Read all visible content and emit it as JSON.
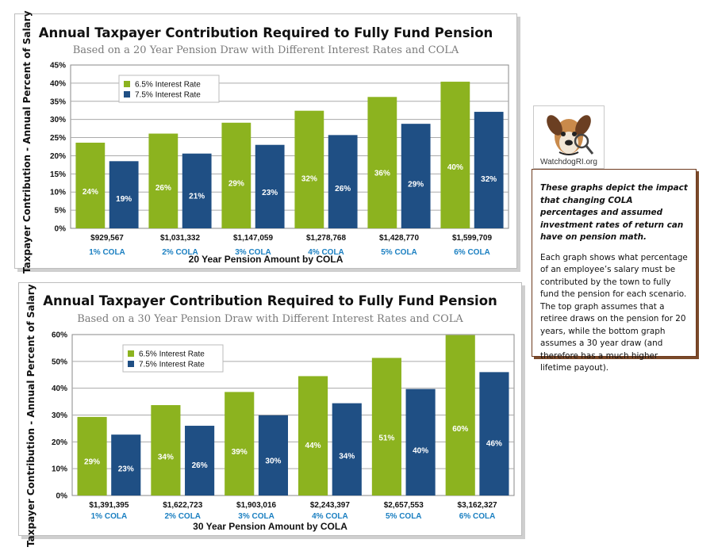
{
  "charts": [
    {
      "title": "Annual Taxpayer Contribution Required to Fully Fund Pension",
      "subtitle": "Based on a 20 Year Pension Draw with Different Interest Rates and COLA",
      "ylabel": "Taxpayer Contribution - Annual Percent of Salary",
      "xlabel": "20 Year Pension Amount by COLA"
    },
    {
      "title": "Annual Taxpayer Contribution Required to Fully Fund Pension",
      "subtitle": "Based on a 30 Year Pension Draw with Different Interest Rates and COLA",
      "ylabel": "Taxpayer Contribution - Annual Percent of Salary",
      "xlabel": "30 Year Pension Amount by COLA"
    }
  ],
  "chart_data": [
    {
      "type": "bar",
      "title": "Annual Taxpayer Contribution Required to Fully Fund Pension",
      "subtitle": "Based on a 20 Year Pension Draw with Different Interest Rates and COLA",
      "xlabel": "20 Year Pension Amount by COLA",
      "ylabel": "Taxpayer Contribution - Annual Percent of Salary",
      "categories": [
        "$929,567",
        "$1,031,332",
        "$1,147,059",
        "$1,278,768",
        "$1,428,770",
        "$1,599,709"
      ],
      "category_sublabels": [
        "1% COLA",
        "2% COLA",
        "3% COLA",
        "4% COLA",
        "5% COLA",
        "6% COLA"
      ],
      "yticks": [
        "0%",
        "5%",
        "10%",
        "15%",
        "20%",
        "25%",
        "30%",
        "35%",
        "40%",
        "45%"
      ],
      "ylim": [
        0,
        45
      ],
      "grid": true,
      "legend_position": "top-left",
      "series": [
        {
          "name": "6.5% Interest Rate",
          "color": "#8cb31f",
          "values": [
            23.6,
            26.1,
            29.1,
            32.4,
            36.2,
            40.4
          ],
          "labels": [
            "24%",
            "26%",
            "29%",
            "32%",
            "36%",
            "40%"
          ]
        },
        {
          "name": "7.5% Interest Rate",
          "color": "#1f4f84",
          "values": [
            18.5,
            20.6,
            23.0,
            25.7,
            28.8,
            32.1
          ],
          "labels": [
            "19%",
            "21%",
            "23%",
            "26%",
            "29%",
            "32%"
          ]
        }
      ]
    },
    {
      "type": "bar",
      "title": "Annual Taxpayer Contribution Required to Fully Fund Pension",
      "subtitle": "Based on a 30 Year Pension Draw with Different Interest Rates and COLA",
      "xlabel": "30 Year Pension Amount by COLA",
      "ylabel": "Taxpayer Contribution - Annual Percent of Salary",
      "categories": [
        "$1,391,395",
        "$1,622,723",
        "$1,903,016",
        "$2,243,397",
        "$2,657,553",
        "$3,162,327"
      ],
      "category_sublabels": [
        "1% COLA",
        "2% COLA",
        "3% COLA",
        "4% COLA",
        "5% COLA",
        "6% COLA"
      ],
      "yticks": [
        "0%",
        "10%",
        "20%",
        "30%",
        "40%",
        "50%",
        "60%"
      ],
      "ylim": [
        0,
        60
      ],
      "grid": true,
      "legend_position": "top-left",
      "series": [
        {
          "name": "6.5% Interest Rate",
          "color": "#8cb31f",
          "values": [
            29.3,
            33.7,
            38.6,
            44.5,
            51.3,
            59.8
          ],
          "labels": [
            "29%",
            "34%",
            "39%",
            "44%",
            "51%",
            "60%"
          ]
        },
        {
          "name": "7.5% Interest Rate",
          "color": "#1f4f84",
          "values": [
            22.7,
            26.0,
            29.9,
            34.4,
            39.7,
            46.0
          ],
          "labels": [
            "23%",
            "26%",
            "30%",
            "34%",
            "40%",
            "46%"
          ]
        }
      ]
    }
  ],
  "logo": {
    "caption": "WatchdogRI.org",
    "icon": "dog-with-magnifying-glass"
  },
  "note": {
    "emphasis": "These graphs depict the impact that changing COLA percentages and assumed investment rates of return can have on pension math.",
    "body": "Each graph shows what percentage of an employee’s salary must be contributed by the town to fully fund the pension for each scenario. The top graph assumes that a retiree draws on the pension for 20 years, while the bottom graph assumes a 30 year draw  (and therefore has a much higher lifetime payout)."
  },
  "colors": {
    "green": "#8cb31f",
    "blue": "#1f4f84",
    "cola_text": "#1a7fc1",
    "grid": "#aaaaaa"
  }
}
